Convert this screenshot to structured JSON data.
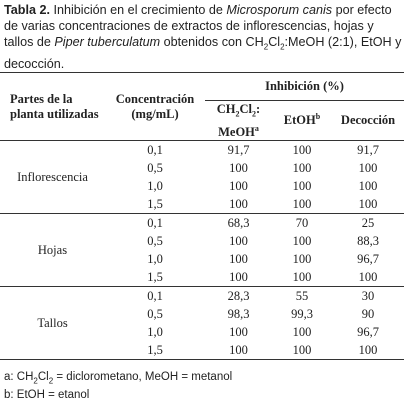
{
  "caption": [
    "Tabla 2.",
    " Inhibición en el crecimiento de ",
    "Microsporum canis",
    " por efecto de varias concentraciones de extractos de inflorescencias, hojas y tallos de ",
    "Piper tuberculatum",
    " obtenidos con CH",
    "2",
    "Cl",
    "2",
    ":MeOH (2:1), EtOH y decocción."
  ],
  "table": {
    "header": {
      "part": "Partes de la planta utilizadas",
      "conc": "Concentración (mg/mL)",
      "inhib": "Inhibición (%)",
      "col1": [
        "CH",
        "2",
        "Cl",
        "2",
        ":",
        "MeOH",
        "a"
      ],
      "col2": [
        "EtOH",
        "b"
      ],
      "col3": "Decocción"
    },
    "groups": [
      {
        "name": "Inflorescencia",
        "rows": [
          [
            "0,1",
            "91,7",
            "100",
            "91,7"
          ],
          [
            "0,5",
            "100",
            "100",
            "100"
          ],
          [
            "1,0",
            "100",
            "100",
            "100"
          ],
          [
            "1,5",
            "100",
            "100",
            "100"
          ]
        ]
      },
      {
        "name": "Hojas",
        "rows": [
          [
            "0,1",
            "68,3",
            "70",
            "25"
          ],
          [
            "0,5",
            "100",
            "100",
            "88,3"
          ],
          [
            "1,0",
            "100",
            "100",
            "96,7"
          ],
          [
            "1,5",
            "100",
            "100",
            "100"
          ]
        ]
      },
      {
        "name": "Tallos",
        "rows": [
          [
            "0,1",
            "28,3",
            "55",
            "30"
          ],
          [
            "0,5",
            "98,3",
            "99,3",
            "90"
          ],
          [
            "1,0",
            "100",
            "100",
            "96,7"
          ],
          [
            "1,5",
            "100",
            "100",
            "100"
          ]
        ]
      }
    ]
  },
  "footnotes": [
    [
      "a: CH",
      "2",
      "Cl",
      "2",
      " = diclorometano, MeOH = metanol"
    ],
    [
      "b: EtOH = etanol"
    ]
  ]
}
